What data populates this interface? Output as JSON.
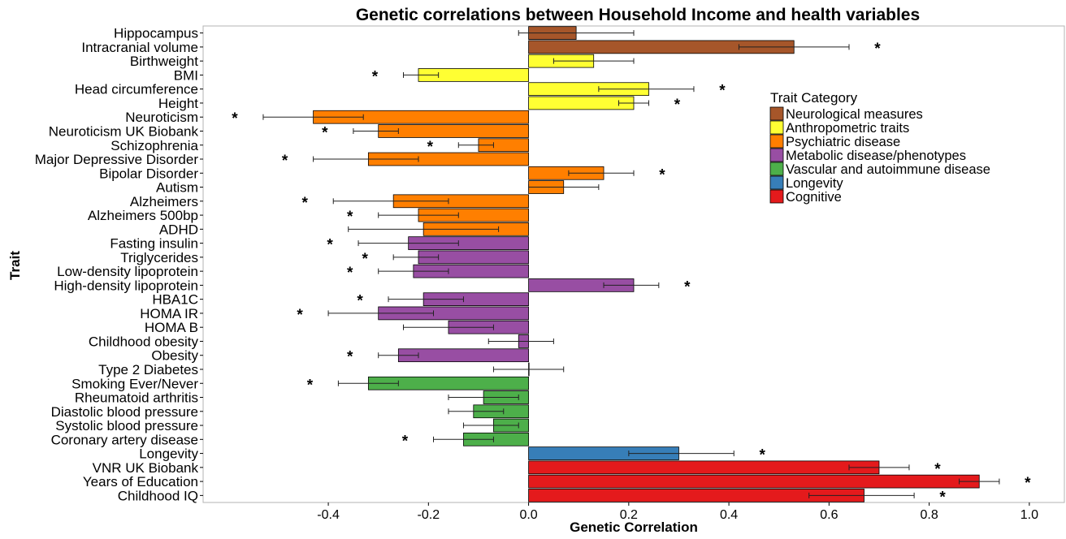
{
  "chart_data": {
    "type": "bar",
    "orientation": "horizontal",
    "title": "Genetic correlations between Household Income and health variables",
    "xlabel": "Genetic Correlation",
    "ylabel": "Trait",
    "xlim": [
      -0.65,
      1.07
    ],
    "xticks": [
      -0.4,
      -0.2,
      0.0,
      0.2,
      0.4,
      0.6,
      0.8,
      1.0
    ],
    "xtick_labels": [
      "-0.4",
      "-0.2",
      "0.0",
      "0.2",
      "0.4",
      "0.6",
      "0.8",
      "1.0"
    ],
    "grid": false,
    "significance_marker": "*",
    "error_bars": true,
    "legend": {
      "title": "Trait Category",
      "position": "right",
      "entries": [
        {
          "label": "Neurological measures",
          "color": "#A6562A"
        },
        {
          "label": "Anthropometric traits",
          "color": "#FFFF33"
        },
        {
          "label": "Psychiatric disease",
          "color": "#FF7F00"
        },
        {
          "label": "Metabolic disease/phenotypes",
          "color": "#984EA3"
        },
        {
          "label": "Vascular and autoimmune disease",
          "color": "#4DAF4A"
        },
        {
          "label": "Longevity",
          "color": "#377EB8"
        },
        {
          "label": "Cognitive",
          "color": "#E41A1C"
        }
      ]
    },
    "traits": [
      {
        "name": "Hippocampus",
        "value": 0.095,
        "lower": -0.02,
        "upper": 0.21,
        "significant": false,
        "category": 0
      },
      {
        "name": "Intracranial volume",
        "value": 0.53,
        "lower": 0.42,
        "upper": 0.64,
        "significant": true,
        "category": 0
      },
      {
        "name": "Birthweight",
        "value": 0.13,
        "lower": 0.05,
        "upper": 0.21,
        "significant": false,
        "category": 1
      },
      {
        "name": "BMI",
        "value": -0.22,
        "lower": -0.25,
        "upper": -0.18,
        "significant": true,
        "category": 1
      },
      {
        "name": "Head circumference",
        "value": 0.24,
        "lower": 0.14,
        "upper": 0.33,
        "significant": true,
        "category": 1
      },
      {
        "name": "Height",
        "value": 0.21,
        "lower": 0.18,
        "upper": 0.24,
        "significant": true,
        "category": 1
      },
      {
        "name": "Neuroticism",
        "value": -0.43,
        "lower": -0.53,
        "upper": -0.33,
        "significant": true,
        "category": 2
      },
      {
        "name": "Neuroticism UK Biobank",
        "value": -0.3,
        "lower": -0.35,
        "upper": -0.26,
        "significant": true,
        "category": 2
      },
      {
        "name": "Schizophrenia",
        "value": -0.1,
        "lower": -0.14,
        "upper": -0.07,
        "significant": true,
        "category": 2
      },
      {
        "name": "Major Depressive Disorder",
        "value": -0.32,
        "lower": -0.43,
        "upper": -0.22,
        "significant": true,
        "category": 2
      },
      {
        "name": "Bipolar Disorder",
        "value": 0.15,
        "lower": 0.08,
        "upper": 0.21,
        "significant": true,
        "category": 2
      },
      {
        "name": "Autism",
        "value": 0.07,
        "lower": 0.0,
        "upper": 0.14,
        "significant": false,
        "category": 2
      },
      {
        "name": "Alzheimers",
        "value": -0.27,
        "lower": -0.39,
        "upper": -0.16,
        "significant": true,
        "category": 2
      },
      {
        "name": "Alzheimers 500bp",
        "value": -0.22,
        "lower": -0.3,
        "upper": -0.14,
        "significant": true,
        "category": 2
      },
      {
        "name": "ADHD",
        "value": -0.21,
        "lower": -0.36,
        "upper": -0.06,
        "significant": false,
        "category": 2
      },
      {
        "name": "Fasting insulin",
        "value": -0.24,
        "lower": -0.34,
        "upper": -0.14,
        "significant": true,
        "category": 3
      },
      {
        "name": "Triglycerides",
        "value": -0.22,
        "lower": -0.27,
        "upper": -0.18,
        "significant": true,
        "category": 3
      },
      {
        "name": "Low-density lipoprotein",
        "value": -0.23,
        "lower": -0.3,
        "upper": -0.16,
        "significant": true,
        "category": 3
      },
      {
        "name": "High-density lipoprotein",
        "value": 0.21,
        "lower": 0.15,
        "upper": 0.26,
        "significant": true,
        "category": 3
      },
      {
        "name": "HBA1C",
        "value": -0.21,
        "lower": -0.28,
        "upper": -0.13,
        "significant": true,
        "category": 3
      },
      {
        "name": "HOMA IR",
        "value": -0.3,
        "lower": -0.4,
        "upper": -0.19,
        "significant": true,
        "category": 3
      },
      {
        "name": "HOMA B",
        "value": -0.16,
        "lower": -0.25,
        "upper": -0.07,
        "significant": false,
        "category": 3
      },
      {
        "name": "Childhood obesity",
        "value": -0.02,
        "lower": -0.08,
        "upper": 0.05,
        "significant": false,
        "category": 3
      },
      {
        "name": "Obesity",
        "value": -0.26,
        "lower": -0.3,
        "upper": -0.22,
        "significant": true,
        "category": 3
      },
      {
        "name": "Type 2 Diabetes",
        "value": 0.0,
        "lower": -0.07,
        "upper": 0.07,
        "significant": false,
        "category": 3
      },
      {
        "name": "Smoking Ever/Never",
        "value": -0.32,
        "lower": -0.38,
        "upper": -0.26,
        "significant": true,
        "category": 4
      },
      {
        "name": "Rheumatoid arthritis",
        "value": -0.09,
        "lower": -0.16,
        "upper": -0.02,
        "significant": false,
        "category": 4
      },
      {
        "name": "Diastolic blood pressure",
        "value": -0.11,
        "lower": -0.16,
        "upper": -0.05,
        "significant": false,
        "category": 4
      },
      {
        "name": "Systolic blood pressure",
        "value": -0.07,
        "lower": -0.13,
        "upper": -0.02,
        "significant": false,
        "category": 4
      },
      {
        "name": "Coronary artery disease",
        "value": -0.13,
        "lower": -0.19,
        "upper": -0.07,
        "significant": true,
        "category": 4
      },
      {
        "name": "Longevity",
        "value": 0.3,
        "lower": 0.2,
        "upper": 0.41,
        "significant": true,
        "category": 5
      },
      {
        "name": "VNR UK Biobank",
        "value": 0.7,
        "lower": 0.64,
        "upper": 0.76,
        "significant": true,
        "category": 6
      },
      {
        "name": "Years of Education",
        "value": 0.9,
        "lower": 0.86,
        "upper": 0.94,
        "significant": true,
        "category": 6
      },
      {
        "name": "Childhood IQ",
        "value": 0.67,
        "lower": 0.56,
        "upper": 0.77,
        "significant": true,
        "category": 6
      }
    ]
  }
}
